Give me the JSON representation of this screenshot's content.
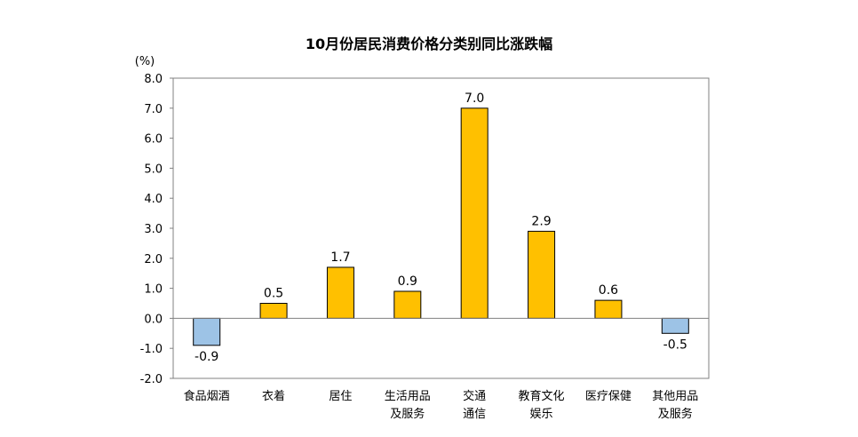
{
  "chart_data": {
    "type": "bar",
    "title": "10月份居民消费价格分类别同比涨跌幅",
    "unit_label": "(%)",
    "categories": [
      [
        "食品烟酒"
      ],
      [
        "衣着"
      ],
      [
        "居住"
      ],
      [
        "生活用品",
        "及服务"
      ],
      [
        "交通",
        "通信"
      ],
      [
        "教育文化",
        "娱乐"
      ],
      [
        "医疗保健"
      ],
      [
        "其他用品",
        "及服务"
      ]
    ],
    "values": [
      -0.9,
      0.5,
      1.7,
      0.9,
      7.0,
      2.9,
      0.6,
      -0.5
    ],
    "value_labels": [
      "-0.9",
      "0.5",
      "1.7",
      "0.9",
      "7.0",
      "2.9",
      "0.6",
      "-0.5"
    ],
    "y_ticks": [
      "8.0",
      "7.0",
      "6.0",
      "5.0",
      "4.0",
      "3.0",
      "2.0",
      "1.0",
      "0.0",
      "-1.0",
      "-2.0"
    ],
    "ylim": [
      -2,
      8
    ],
    "grid": false,
    "colors": {
      "positive": "#FFC000",
      "negative": "#9DC3E6",
      "bar_stroke": "#000000",
      "axis": "#808080"
    }
  }
}
